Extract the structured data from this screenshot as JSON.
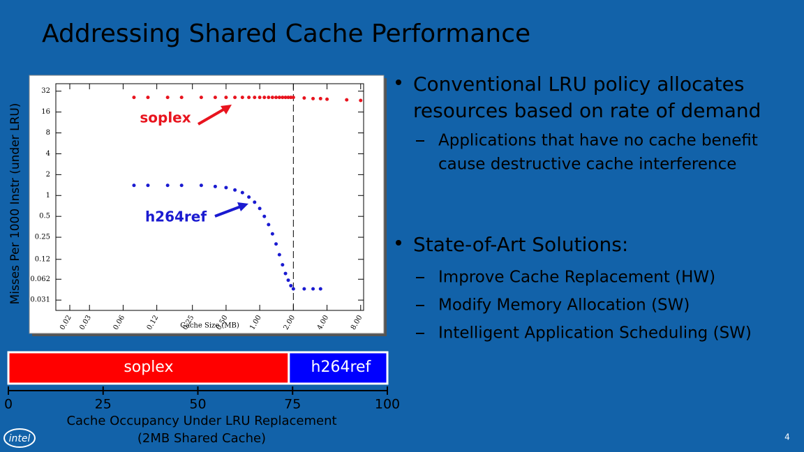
{
  "title": "Addressing Shared Cache Performance",
  "bullets": [
    {
      "text": [
        "Conventional LRU policy allocates",
        "resources based on rate of demand"
      ],
      "sub": [
        [
          "Applications that have no cache benefit",
          "cause destructive cache interference"
        ]
      ]
    },
    {
      "text": [
        "State-of-Art Solutions:"
      ],
      "sub": [
        [
          "Improve Cache Replacement (HW)"
        ],
        [
          "Modify Memory Allocation (SW)"
        ],
        [
          "Intelligent Application Scheduling (SW)"
        ]
      ]
    }
  ],
  "logo": "intel",
  "page_number": "4",
  "chart_data": [
    {
      "type": "scatter",
      "xlabel": "Cache Size (MB)",
      "ylabel": "Misses Per 1000 Instr (under LRU)",
      "xscale": "log",
      "yscale": "log",
      "xlim": [
        0.015,
        8.5
      ],
      "ylim": [
        0.022,
        41
      ],
      "xticks": [
        0.02,
        0.03,
        0.06,
        0.12,
        0.25,
        {
          "value": 0.5,
          "label": "0.50"
        },
        {
          "value": 1,
          "label": "1.00"
        },
        {
          "value": 2,
          "label": "2.00"
        },
        {
          "value": 4,
          "label": "4.00"
        },
        {
          "value": 8,
          "label": "8.00"
        }
      ],
      "yticks": [
        0.031,
        0.062,
        0.12,
        0.25,
        0.5,
        1,
        2,
        4,
        8,
        16,
        32
      ],
      "vline": 2,
      "x": [
        0.075,
        0.1,
        0.15,
        0.2,
        0.3,
        0.4,
        0.5,
        0.6,
        0.7,
        0.8,
        0.9,
        1.0,
        1.1,
        1.2,
        1.3,
        1.4,
        1.5,
        1.6,
        1.7,
        1.8,
        1.9,
        2.0,
        2.5,
        3.0,
        3.5,
        4,
        6,
        8
      ],
      "series": [
        {
          "name": "soplex",
          "color": "#e8141e",
          "values": [
            26,
            26,
            26,
            26,
            26,
            26,
            26,
            26,
            26,
            26,
            26,
            26,
            26,
            26,
            26,
            26,
            26,
            26,
            26,
            26,
            26,
            26,
            25.5,
            25,
            25,
            24.5,
            24,
            23.5
          ]
        },
        {
          "name": "h264ref",
          "color": "#1a1ad0",
          "values": [
            1.4,
            1.4,
            1.4,
            1.4,
            1.4,
            1.35,
            1.3,
            1.2,
            1.1,
            0.95,
            0.8,
            0.65,
            0.5,
            0.38,
            0.28,
            0.2,
            0.14,
            0.1,
            0.075,
            0.06,
            0.05,
            0.045,
            0.045,
            0.045,
            0.045,
            null,
            null,
            null
          ]
        }
      ]
    },
    {
      "type": "bar",
      "orientation": "horizontal",
      "stacked": true,
      "xlabel": [
        "Cache Occupancy Under LRU Replacement",
        "(2MB Shared Cache)"
      ],
      "xlim": [
        0,
        100
      ],
      "xticks": [
        0,
        25,
        50,
        75,
        100
      ],
      "series": [
        {
          "name": "soplex",
          "color": "#ff0000",
          "values": [
            74
          ]
        },
        {
          "name": "h264ref",
          "color": "#0000ff",
          "values": [
            26
          ]
        }
      ]
    }
  ]
}
